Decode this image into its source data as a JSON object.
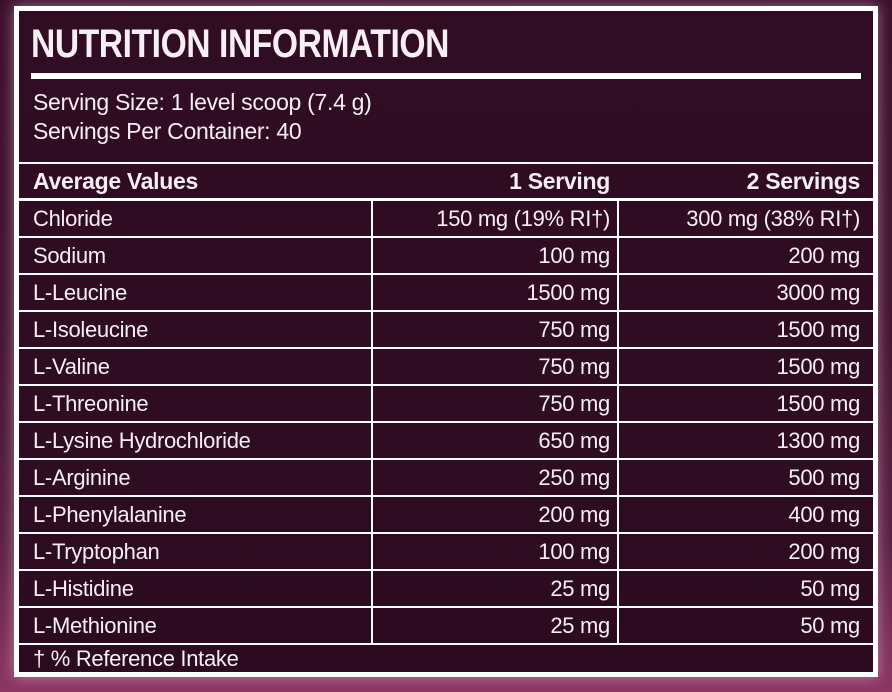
{
  "label": {
    "title": "NUTRITION INFORMATION",
    "serving_size": "Serving Size: 1 level scoop (7.4 g)",
    "servings_per_container": "Servings Per Container: 40",
    "footnote": "† % Reference Intake"
  },
  "table": {
    "columns": [
      "Average Values",
      "1 Serving",
      "2 Servings"
    ],
    "rows": [
      {
        "name": "Chloride",
        "serving1": "150 mg (19% RI†)",
        "serving2": "300 mg (38% RI†)"
      },
      {
        "name": "Sodium",
        "serving1": "100 mg",
        "serving2": "200 mg"
      },
      {
        "name": "L-Leucine",
        "serving1": "1500 mg",
        "serving2": "3000 mg"
      },
      {
        "name": "L-Isoleucine",
        "serving1": "750 mg",
        "serving2": "1500 mg"
      },
      {
        "name": "L-Valine",
        "serving1": "750 mg",
        "serving2": "1500 mg"
      },
      {
        "name": "L-Threonine",
        "serving1": "750 mg",
        "serving2": "1500 mg"
      },
      {
        "name": "L-Lysine Hydrochloride",
        "serving1": "650 mg",
        "serving2": "1300 mg"
      },
      {
        "name": "L-Arginine",
        "serving1": "250 mg",
        "serving2": "500 mg"
      },
      {
        "name": "L-Phenylalanine",
        "serving1": "200 mg",
        "serving2": "400 mg"
      },
      {
        "name": "L-Tryptophan",
        "serving1": "100 mg",
        "serving2": "200 mg"
      },
      {
        "name": "L-Histidine",
        "serving1": "25 mg",
        "serving2": "50 mg"
      },
      {
        "name": "L-Methionine",
        "serving1": "25 mg",
        "serving2": "50 mg"
      }
    ]
  },
  "colors": {
    "outer_background_top": "#3c0f2c",
    "outer_background_bottom": "#8d3563",
    "label_background": "#2e0c22",
    "border_and_rules": "#ffffff",
    "text": "#f7eff4"
  }
}
